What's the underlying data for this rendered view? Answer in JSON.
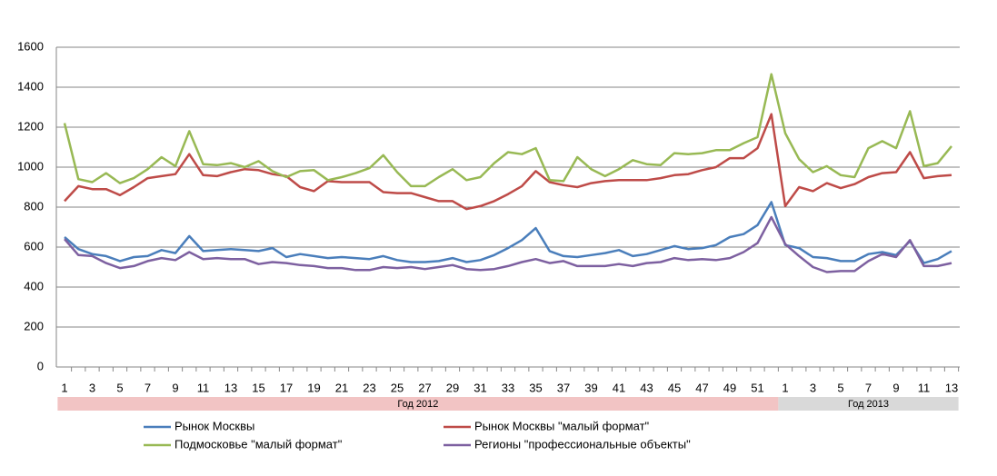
{
  "chart_data": {
    "type": "line",
    "groups": [
      {
        "label": "Год 2012",
        "color": "#f2c4c4",
        "categories": [
          "1",
          null,
          "3",
          null,
          "5",
          null,
          "7",
          null,
          "9",
          null,
          "11",
          null,
          "13",
          null,
          "15",
          null,
          "17",
          null,
          "19",
          null,
          "21",
          null,
          "23",
          null,
          "25",
          null,
          "27",
          null,
          "29",
          null,
          "31",
          null,
          "33",
          null,
          "35",
          null,
          "37",
          null,
          "39",
          null,
          "41",
          null,
          "43",
          null,
          "45",
          null,
          "47",
          null,
          "49",
          null,
          "51",
          null
        ]
      },
      {
        "label": "Год 2013",
        "color": "#d9d9d9",
        "categories": [
          "1",
          null,
          "3",
          null,
          "5",
          null,
          "7",
          null,
          "9",
          null,
          "11",
          null,
          "13"
        ]
      }
    ],
    "series": [
      {
        "name": "Рынок Москвы",
        "color": "#4a7ebb",
        "values": [
          650,
          590,
          565,
          555,
          530,
          550,
          555,
          585,
          570,
          655,
          580,
          585,
          590,
          585,
          580,
          595,
          550,
          565,
          555,
          545,
          550,
          545,
          540,
          555,
          535,
          525,
          525,
          530,
          545,
          525,
          535,
          560,
          595,
          635,
          695,
          580,
          555,
          550,
          560,
          570,
          585,
          555,
          565,
          585,
          605,
          590,
          595,
          610,
          650,
          665,
          710,
          825,
          610,
          595,
          550,
          545,
          530,
          530,
          565,
          575,
          560,
          630,
          520,
          540,
          580
        ]
      },
      {
        "name": "Рынок Москвы \"малый формат\"",
        "color": "#be4b48",
        "values": [
          830,
          905,
          890,
          890,
          860,
          900,
          945,
          955,
          965,
          1065,
          960,
          955,
          975,
          990,
          985,
          965,
          955,
          900,
          880,
          930,
          925,
          925,
          925,
          875,
          870,
          870,
          850,
          830,
          830,
          790,
          805,
          830,
          865,
          905,
          980,
          925,
          910,
          900,
          920,
          930,
          935,
          935,
          935,
          945,
          960,
          965,
          985,
          1000,
          1045,
          1045,
          1095,
          1265,
          805,
          900,
          880,
          920,
          895,
          915,
          950,
          970,
          975,
          1075,
          945,
          955,
          960
        ]
      },
      {
        "name": "Подмосковье \"малый формат\"",
        "color": "#98b954",
        "values": [
          1220,
          940,
          925,
          970,
          920,
          945,
          990,
          1050,
          1005,
          1180,
          1015,
          1010,
          1020,
          1000,
          1030,
          980,
          950,
          980,
          985,
          935,
          950,
          970,
          995,
          1060,
          975,
          905,
          905,
          950,
          990,
          935,
          950,
          1020,
          1075,
          1065,
          1095,
          935,
          930,
          1050,
          990,
          955,
          990,
          1035,
          1015,
          1010,
          1070,
          1065,
          1070,
          1085,
          1085,
          1120,
          1150,
          1465,
          1170,
          1040,
          975,
          1005,
          960,
          950,
          1095,
          1130,
          1095,
          1280,
          1005,
          1020,
          1105
        ]
      },
      {
        "name": "Регионы \"профессиональные объекты\"",
        "color": "#7d60a0",
        "values": [
          640,
          560,
          555,
          520,
          495,
          505,
          530,
          545,
          535,
          575,
          540,
          545,
          540,
          540,
          515,
          525,
          520,
          510,
          505,
          495,
          495,
          485,
          485,
          500,
          495,
          500,
          490,
          500,
          510,
          490,
          485,
          490,
          505,
          525,
          540,
          520,
          530,
          505,
          505,
          505,
          515,
          505,
          520,
          525,
          545,
          535,
          540,
          535,
          545,
          575,
          620,
          750,
          615,
          555,
          500,
          475,
          480,
          480,
          530,
          565,
          550,
          635,
          505,
          505,
          520
        ]
      }
    ],
    "ylim": [
      0,
      1600
    ],
    "yticks": [
      0,
      200,
      400,
      600,
      800,
      1000,
      1200,
      1400,
      1600
    ],
    "grid": true
  }
}
